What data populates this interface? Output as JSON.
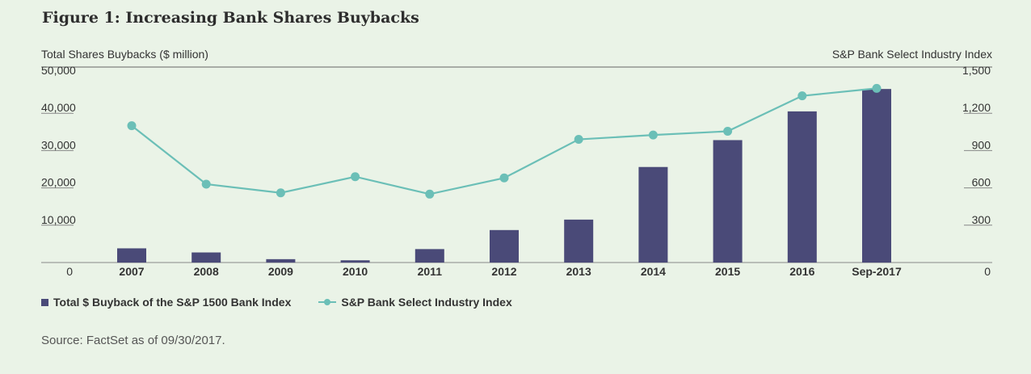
{
  "title": "Figure 1: Increasing Bank Shares Buybacks",
  "source": "Source: FactSet as of 09/30/2017.",
  "colors": {
    "bar": "#4a4a78",
    "line": "#6bbfb7",
    "background": "#eaf3e7"
  },
  "chart_data": {
    "type": "bar",
    "left_axis_title": "Total Shares Buybacks ($ million)",
    "right_axis_title": "S&P Bank Select Industry Index",
    "categories": [
      "2007",
      "2008",
      "2009",
      "2010",
      "2011",
      "2012",
      "2013",
      "2014",
      "2015",
      "2016",
      "Sep-2017"
    ],
    "left_ylim": [
      0,
      50000
    ],
    "left_ticks": [
      0,
      10000,
      20000,
      30000,
      40000,
      50000
    ],
    "left_tick_labels": [
      "0",
      "10,000",
      "20,000",
      "30,000",
      "40,000",
      "50,000"
    ],
    "right_ylim": [
      0,
      1500
    ],
    "right_ticks": [
      0,
      300,
      600,
      900,
      1200,
      1500
    ],
    "right_tick_labels": [
      "0",
      "300",
      "600",
      "900",
      "1,200",
      "1,500"
    ],
    "legend_position": "bottom-left",
    "series": [
      {
        "name": "Total $ Buyback of the S&P 1500 Bank Index",
        "type": "bar",
        "axis": "left",
        "values": [
          3800,
          2700,
          900,
          600,
          3600,
          8700,
          11500,
          25600,
          32800,
          40500,
          46500
        ]
      },
      {
        "name": "S&P Bank Select Industry Index",
        "type": "line",
        "axis": "right",
        "values": [
          1100,
          630,
          560,
          690,
          550,
          680,
          990,
          1025,
          1055,
          1340,
          1400
        ]
      }
    ]
  }
}
